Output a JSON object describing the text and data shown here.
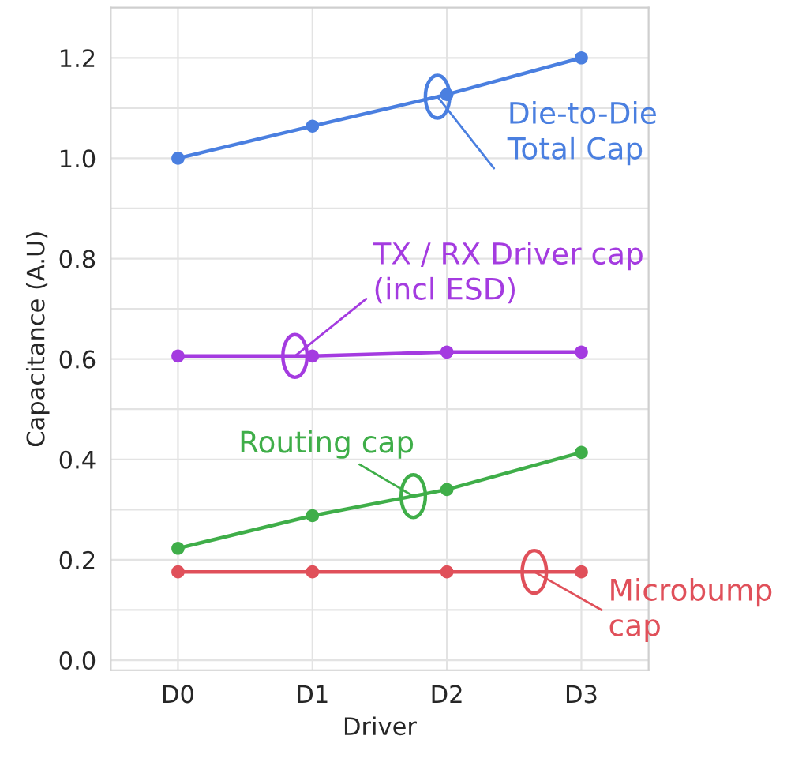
{
  "chart_data": {
    "type": "line",
    "xlabel": "Driver",
    "ylabel": "Capacitance (A.U)",
    "categories": [
      "D0",
      "D1",
      "D2",
      "D3"
    ],
    "series": [
      {
        "name": "Die-to-Die\nTotal Cap",
        "color": "#4a7fe0",
        "values": [
          1.0,
          1.064,
          1.127,
          1.2
        ]
      },
      {
        "name": "TX / RX Driver cap\n(incl ESD)",
        "color": "#a43be0",
        "values": [
          0.606,
          0.606,
          0.614,
          0.614
        ]
      },
      {
        "name": "Routing cap",
        "color": "#3fae49",
        "values": [
          0.223,
          0.288,
          0.34,
          0.414
        ]
      },
      {
        "name": "Microbump\ncap",
        "color": "#e0505a",
        "values": [
          0.176,
          0.176,
          0.176,
          0.176
        ]
      }
    ],
    "ylim": [
      -0.02,
      1.3
    ],
    "yticks": [
      {
        "value": 0.0,
        "label": "0.0"
      },
      {
        "value": 0.1,
        "label": null
      },
      {
        "value": 0.2,
        "label": "0.2"
      },
      {
        "value": 0.3,
        "label": null
      },
      {
        "value": 0.4,
        "label": "0.4"
      },
      {
        "value": 0.5,
        "label": null
      },
      {
        "value": 0.6,
        "label": "0.6"
      },
      {
        "value": 0.7,
        "label": null
      },
      {
        "value": 0.8,
        "label": "0.8"
      },
      {
        "value": 0.9,
        "label": null
      },
      {
        "value": 1.0,
        "label": "1.0"
      },
      {
        "value": 1.1,
        "label": null
      },
      {
        "value": 1.2,
        "label": "1.2"
      }
    ],
    "grid": true,
    "marker": "circle",
    "line_style": "solid"
  }
}
